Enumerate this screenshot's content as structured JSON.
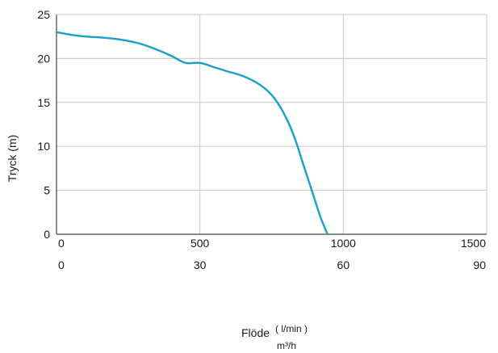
{
  "chart_data": {
    "type": "line",
    "title": "",
    "ylabel": "Tryck (m)",
    "xlabel": "Flöde",
    "xlabel_units": [
      "( l/min )",
      "m³/h"
    ],
    "xlim": [
      0,
      1500
    ],
    "ylim": [
      0,
      25
    ],
    "grid": true,
    "x_ticks": [
      0,
      500,
      1000,
      1500
    ],
    "x_ticks_secondary": [
      0,
      30,
      60,
      90
    ],
    "y_ticks": [
      0,
      5,
      10,
      15,
      20,
      25
    ],
    "series": [
      {
        "color": "#1aa0c8",
        "x": [
          0,
          50,
          100,
          150,
          200,
          250,
          300,
          350,
          400,
          450,
          500,
          550,
          600,
          650,
          700,
          740,
          770,
          800,
          830,
          860,
          890,
          920,
          945
        ],
        "y": [
          23,
          22.7,
          22.5,
          22.4,
          22.25,
          22.0,
          21.6,
          21.0,
          20.3,
          19.5,
          19.5,
          19.0,
          18.5,
          18.0,
          17.2,
          16.2,
          15.0,
          13.3,
          11.0,
          8.0,
          5.0,
          2.0,
          0
        ]
      }
    ]
  }
}
